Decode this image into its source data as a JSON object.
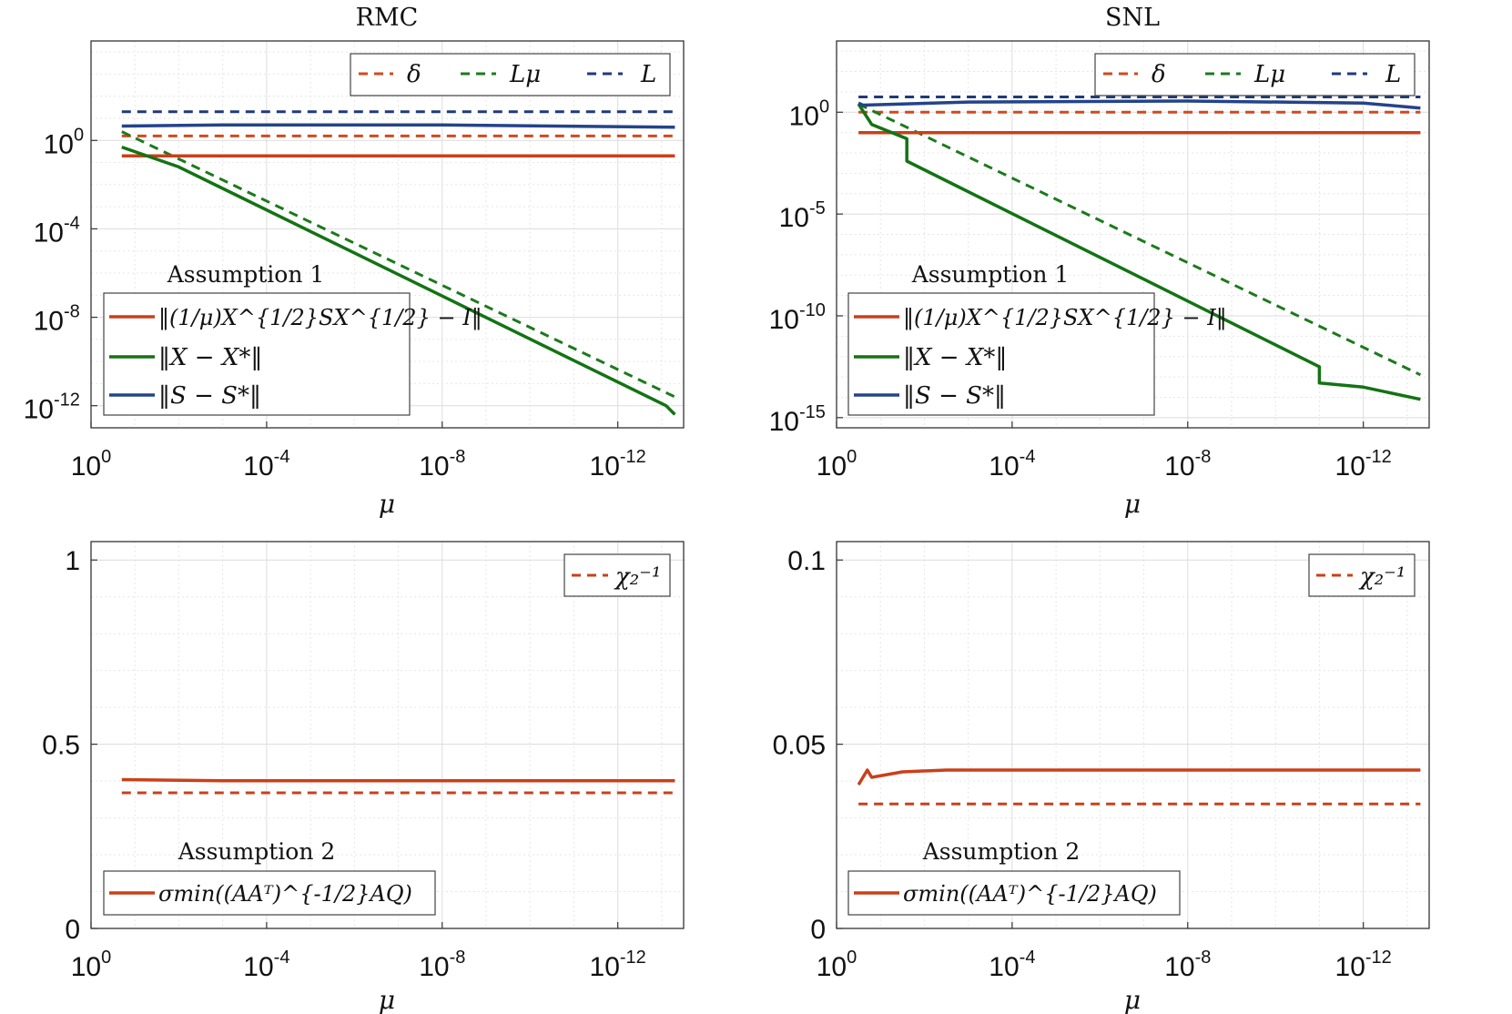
{
  "colors": {
    "delta": "#d04a1e",
    "Lmu": "#1c7a1c",
    "L": "#1f3a7a",
    "x_err": "#137313",
    "s_err": "#24438a",
    "central": "#c9401a",
    "grid": "#e3e3e3",
    "axis": "#333333"
  },
  "axis_text": {
    "xlabel": "μ",
    "x_ticks": [
      "10",
      "10",
      "10",
      "10"
    ],
    "x_tick_exps": [
      "0",
      "-4",
      "-8",
      "-12"
    ]
  },
  "chart_data": [
    {
      "type": "line",
      "title": "RMC",
      "xlabel": "μ",
      "xlog": true,
      "ylog": true,
      "xlim_exp": [
        0,
        -13.5
      ],
      "ylim_exp": [
        -13,
        4.5
      ],
      "y_ticks": [
        "10",
        "10",
        "10",
        "10"
      ],
      "y_tick_exps": [
        "0",
        "-4",
        "-8",
        "-12"
      ],
      "y_tick_vals": [
        0,
        -4,
        -8,
        -12
      ],
      "legend_top": {
        "entries": [
          "δ",
          "Lμ",
          "L"
        ]
      },
      "legend_bottom": {
        "title": "Assumption 1",
        "entries": [
          "‖(1/μ)X^{1/2}SX^{1/2} − I‖",
          "‖X − X*‖",
          "‖S − S*‖"
        ]
      },
      "series": [
        {
          "name": "δ",
          "style": "dashed",
          "color": "delta",
          "x": [
            -0.7,
            -13.3
          ],
          "y": [
            0.2,
            0.2
          ]
        },
        {
          "name": "Lμ",
          "style": "dashed",
          "color": "Lmu",
          "x": [
            -0.7,
            -13.3
          ],
          "y": [
            0.4,
            -11.6
          ]
        },
        {
          "name": "L",
          "style": "dashed",
          "color": "L",
          "x": [
            -0.7,
            -13.3
          ],
          "y": [
            1.3,
            1.3
          ]
        },
        {
          "name": "‖(1/μ)X^{1/2}SX^{1/2} − I‖",
          "style": "solid",
          "color": "central",
          "x": [
            -0.7,
            -13.3
          ],
          "y": [
            -0.7,
            -0.7
          ]
        },
        {
          "name": "‖X − X*‖",
          "style": "solid",
          "color": "x_err",
          "x": [
            -0.7,
            -2.0,
            -13.1,
            -13.3
          ],
          "y": [
            -0.3,
            -1.2,
            -12.0,
            -12.4
          ]
        },
        {
          "name": "‖S − S*‖",
          "style": "solid",
          "color": "s_err",
          "x": [
            -0.7,
            -3.0,
            -8.0,
            -13.3
          ],
          "y": [
            0.65,
            0.7,
            0.7,
            0.6
          ]
        }
      ]
    },
    {
      "type": "line",
      "title": "SNL",
      "xlabel": "μ",
      "xlog": true,
      "ylog": true,
      "xlim_exp": [
        0,
        -13.5
      ],
      "ylim_exp": [
        -15.5,
        3.5
      ],
      "y_ticks": [
        "10",
        "10",
        "10",
        "10"
      ],
      "y_tick_exps": [
        "0",
        "-5",
        "-10",
        "-15"
      ],
      "y_tick_vals": [
        0,
        -5,
        -10,
        -15
      ],
      "legend_top": {
        "entries": [
          "δ",
          "Lμ",
          "L"
        ]
      },
      "legend_bottom": {
        "title": "Assumption 1",
        "entries": [
          "‖(1/μ)X^{1/2}SX^{1/2} − I‖",
          "‖X − X*‖",
          "‖S − S*‖"
        ]
      },
      "series": [
        {
          "name": "δ",
          "style": "dashed",
          "color": "delta",
          "x": [
            -0.5,
            -13.3
          ],
          "y": [
            0.0,
            0.0
          ]
        },
        {
          "name": "Lμ",
          "style": "dashed",
          "color": "Lmu",
          "x": [
            -0.5,
            -13.3
          ],
          "y": [
            0.4,
            -12.9
          ]
        },
        {
          "name": "L",
          "style": "dashed",
          "color": "L",
          "x": [
            -0.5,
            -13.3
          ],
          "y": [
            0.75,
            0.75
          ]
        },
        {
          "name": "‖(1/μ)X^{1/2}SX^{1/2} − I‖",
          "style": "solid",
          "color": "central",
          "x": [
            -0.5,
            -13.3
          ],
          "y": [
            -1.0,
            -1.0
          ]
        },
        {
          "name": "‖X − X*‖",
          "style": "solid",
          "color": "x_err",
          "x": [
            -0.5,
            -0.8,
            -1.6,
            -1.6,
            -11.0,
            -11.0,
            -12.0,
            -13.3
          ],
          "y": [
            0.4,
            -0.6,
            -1.3,
            -2.4,
            -12.5,
            -13.3,
            -13.5,
            -14.1
          ]
        },
        {
          "name": "‖S − S*‖",
          "style": "solid",
          "color": "s_err",
          "x": [
            -0.5,
            -0.6,
            -3.0,
            -8.0,
            -12.0,
            -13.3
          ],
          "y": [
            0.45,
            0.35,
            0.5,
            0.55,
            0.45,
            0.2
          ]
        }
      ]
    },
    {
      "type": "line",
      "title": "",
      "xlabel": "μ",
      "xlog": true,
      "ylog": false,
      "xlim_exp": [
        0,
        -13.5
      ],
      "ylim": [
        0,
        1.05
      ],
      "y_ticks": [
        "0",
        "0.5",
        "1"
      ],
      "y_tick_vals": [
        0,
        0.5,
        1
      ],
      "legend_top": {
        "entries": [
          "χ₂⁻¹"
        ]
      },
      "legend_bottom": {
        "title": "Assumption 2",
        "entries": [
          "σmin((AAᵀ)^{-1/2}AQ)"
        ]
      },
      "series": [
        {
          "name": "χ₂⁻¹",
          "style": "dashed",
          "color": "central",
          "x": [
            -0.7,
            -13.3
          ],
          "y": [
            0.368,
            0.368
          ]
        },
        {
          "name": "σmin((AAᵀ)^{-1/2}AQ)",
          "style": "solid",
          "color": "central",
          "x": [
            -0.7,
            -3.0,
            -13.3
          ],
          "y": [
            0.404,
            0.401,
            0.401
          ]
        }
      ]
    },
    {
      "type": "line",
      "title": "",
      "xlabel": "μ",
      "xlog": true,
      "ylog": false,
      "xlim_exp": [
        0,
        -13.5
      ],
      "ylim": [
        0,
        0.105
      ],
      "y_ticks": [
        "0",
        "0.05",
        "0.1"
      ],
      "y_tick_vals": [
        0,
        0.05,
        0.1
      ],
      "legend_top": {
        "entries": [
          "χ₂⁻¹"
        ]
      },
      "legend_bottom": {
        "title": "Assumption 2",
        "entries": [
          "σmin((AAᵀ)^{-1/2}AQ)"
        ]
      },
      "series": [
        {
          "name": "χ₂⁻¹",
          "style": "dashed",
          "color": "central",
          "x": [
            -0.5,
            -13.3
          ],
          "y": [
            0.0338,
            0.0338
          ]
        },
        {
          "name": "σmin((AAᵀ)^{-1/2}AQ)",
          "style": "solid",
          "color": "central",
          "x": [
            -0.5,
            -0.7,
            -0.8,
            -1.5,
            -2.5,
            -13.3
          ],
          "y": [
            0.039,
            0.043,
            0.041,
            0.0425,
            0.043,
            0.043
          ]
        }
      ]
    }
  ]
}
